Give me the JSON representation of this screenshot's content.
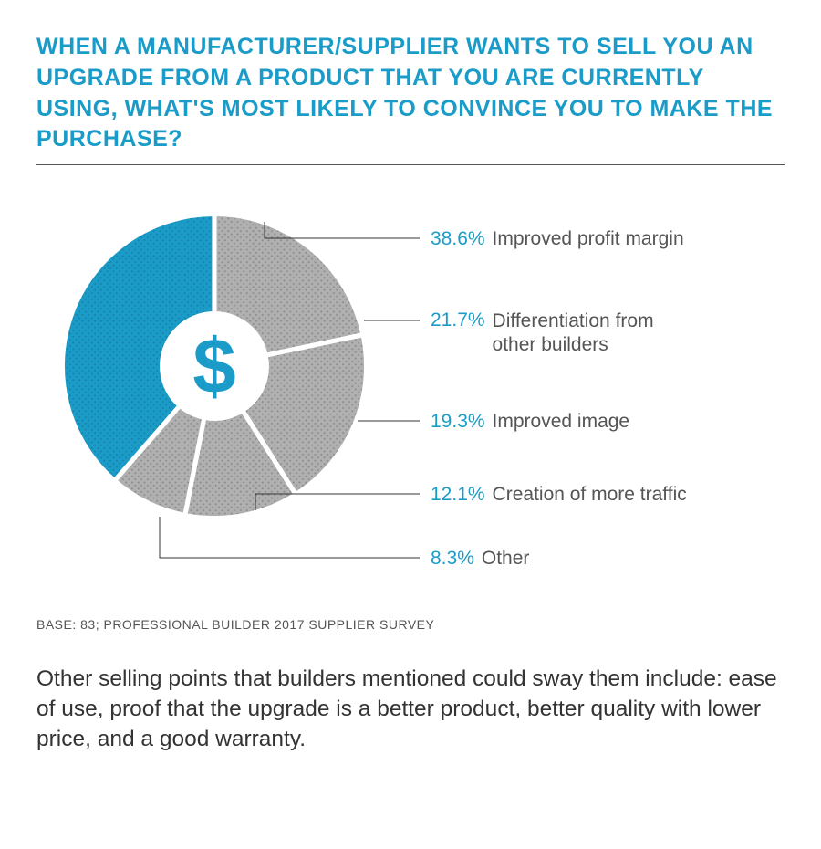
{
  "title": "WHEN A MANUFACTURER/SUPPLIER WANTS TO SELL YOU AN UPGRADE FROM A PRODUCT THAT YOU ARE CURRENTLY USING, WHAT'S MOST LIKELY TO CONVINCE YOU TO MAKE THE PURCHASE?",
  "chart": {
    "type": "pie",
    "background_color": "#ffffff",
    "primary_color": "#1b9cc8",
    "secondary_color": "#b0b0b0",
    "dot_overlay": "#8a8a8a",
    "gap_stroke": "#ffffff",
    "gap_width": 3,
    "center_icon": "dollar-sign",
    "center_icon_color": "#1b9cc8",
    "slices": [
      {
        "label": "Improved profit margin",
        "pct": 38.6,
        "pct_text": "38.6%",
        "color": "#1b9cc8"
      },
      {
        "label": "Differentiation from other builders",
        "pct": 21.7,
        "pct_text": "21.7%",
        "color": "#b0b0b0"
      },
      {
        "label": "Improved image",
        "pct": 19.3,
        "pct_text": "19.3%",
        "color": "#b0b0b0"
      },
      {
        "label": "Creation of more traffic",
        "pct": 12.1,
        "pct_text": "12.1%",
        "color": "#b0b0b0"
      },
      {
        "label": "Other",
        "pct": 8.3,
        "pct_text": "8.3%",
        "color": "#b0b0b0"
      }
    ],
    "label_fontsize": 21,
    "label_text_color": "#555555",
    "label_pct_color": "#1b9cc8"
  },
  "base": "BASE: 83; PROFESSIONAL BUILDER 2017 SUPPLIER SURVEY",
  "body": "Other selling points that builders mentioned could sway them include: ease of use, proof that the upgrade is a better product, better quality with lower price, and a good warranty."
}
